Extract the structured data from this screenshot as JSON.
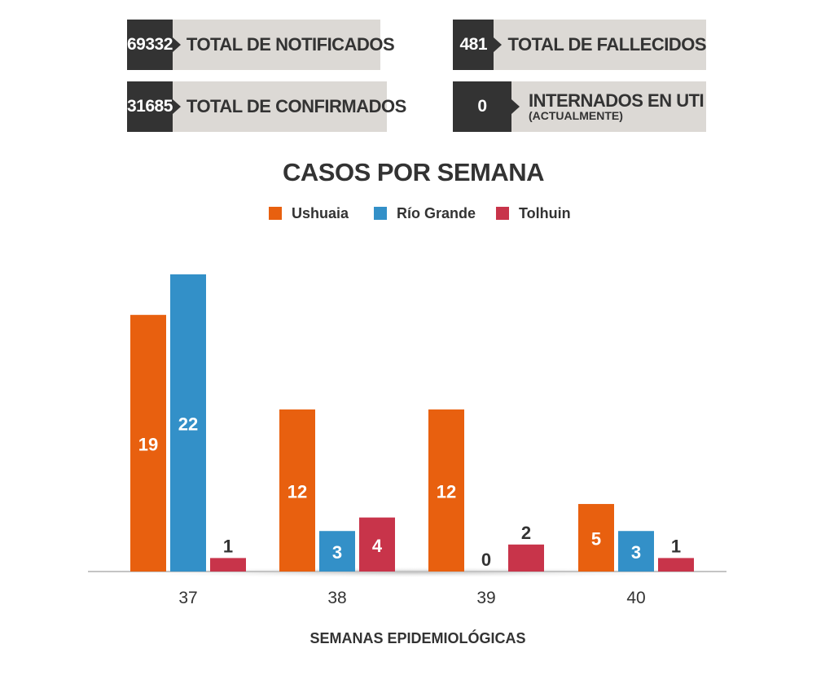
{
  "stats": [
    {
      "value": "69332",
      "label": "TOTAL DE NOTIFICADOS"
    },
    {
      "value": "31685",
      "label": "TOTAL DE CONFIRMADOS"
    },
    {
      "value": "481",
      "label": "TOTAL DE FALLECIDOS"
    },
    {
      "value": "0",
      "label": "INTERNADOS EN UTI",
      "sublabel": "(ACTUALMENTE)"
    }
  ],
  "chart_data": {
    "type": "bar",
    "title": "CASOS POR SEMANA",
    "xlabel": "SEMANAS EPIDEMIOLÓGICAS",
    "ylabel": "",
    "categories": [
      "37",
      "38",
      "39",
      "40"
    ],
    "series": [
      {
        "name": "Ushuaia",
        "color": "#e8600f",
        "values": [
          19,
          12,
          12,
          5
        ]
      },
      {
        "name": "Río Grande",
        "color": "#3390c8",
        "values": [
          22,
          3,
          0,
          3
        ]
      },
      {
        "name": "Tolhuin",
        "color": "#c8344a",
        "values": [
          1,
          4,
          2,
          1
        ]
      }
    ],
    "ylim": [
      0,
      22
    ],
    "legend": "top",
    "grid": false
  }
}
